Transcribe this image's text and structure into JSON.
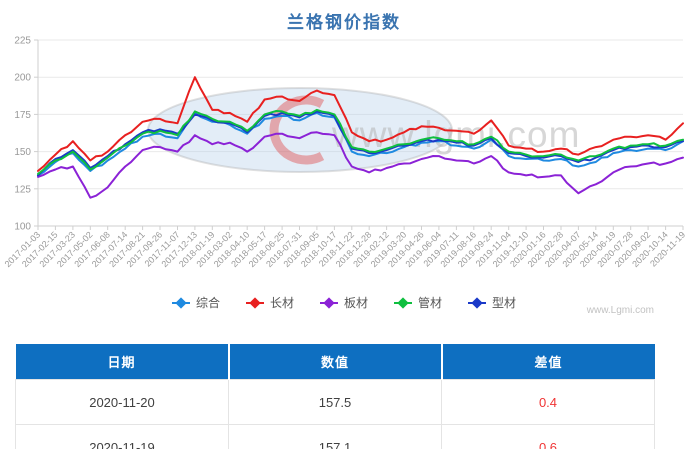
{
  "page": {
    "title": "兰格钢价指数",
    "watermark_small": "www.Lgmi.com",
    "watermark_large": "www.lgmi.com"
  },
  "chart_data": {
    "type": "line",
    "title": "兰格钢价指数",
    "xlabel": "",
    "ylabel": "",
    "ylim": [
      100,
      225
    ],
    "y_ticks": [
      225,
      200,
      175,
      150,
      125,
      100
    ],
    "grid": true,
    "legend_position": "bottom",
    "x_labels": [
      "2017-01-03",
      "2017-02-15",
      "2017-03-23",
      "2017-05-02",
      "2017-06-08",
      "2017-07-14",
      "2017-08-21",
      "2017-09-26",
      "2017-11-07",
      "2017-12-13",
      "2018-01-19",
      "2018-03-02",
      "2018-04-10",
      "2018-05-17",
      "2018-06-25",
      "2018-07-31",
      "2018-09-05",
      "2018-10-17",
      "2018-11-22",
      "2018-12-28",
      "2019-02-12",
      "2019-03-20",
      "2019-04-26",
      "2019-06-04",
      "2019-07-11",
      "2019-08-16",
      "2019-09-24",
      "2019-11-04",
      "2019-12-10",
      "2020-01-16",
      "2020-02-28",
      "2020-04-07",
      "2020-05-14",
      "2020-06-19",
      "2020-07-28",
      "2020-09-02",
      "2020-10-14",
      "2020-11-19"
    ],
    "series": [
      {
        "name": "综合",
        "color": "#1f8ae0",
        "values": [
          134,
          143,
          149,
          137,
          144,
          152,
          160,
          162,
          159,
          176,
          170,
          168,
          162,
          172,
          174,
          171,
          176,
          173,
          150,
          147,
          149,
          153,
          156,
          157,
          154,
          152,
          158,
          147,
          145,
          144,
          145,
          140,
          143,
          149,
          151,
          152,
          151,
          157
        ]
      },
      {
        "name": "长材",
        "color": "#e82020",
        "values": [
          137,
          148,
          157,
          144,
          150,
          161,
          170,
          172,
          169,
          200,
          178,
          176,
          170,
          185,
          187,
          184,
          191,
          188,
          163,
          157,
          158,
          163,
          167,
          166,
          164,
          162,
          171,
          154,
          152,
          150,
          152,
          148,
          153,
          158,
          160,
          161,
          158,
          169
        ]
      },
      {
        "name": "板材",
        "color": "#8b22d6",
        "values": [
          133,
          138,
          140,
          119,
          126,
          140,
          151,
          153,
          150,
          161,
          155,
          156,
          150,
          160,
          162,
          159,
          163,
          161,
          140,
          136,
          139,
          142,
          145,
          147,
          144,
          142,
          147,
          136,
          134,
          133,
          134,
          122,
          128,
          136,
          140,
          142,
          142,
          146
        ]
      },
      {
        "name": "管材",
        "color": "#0fbf3f",
        "values": [
          135,
          144,
          150,
          138,
          146,
          154,
          162,
          164,
          161,
          177,
          172,
          170,
          164,
          175,
          177,
          174,
          178,
          175,
          153,
          150,
          152,
          155,
          158,
          159,
          157,
          155,
          160,
          150,
          148,
          147,
          148,
          144,
          147,
          152,
          154,
          155,
          154,
          158
        ]
      },
      {
        "name": "型材",
        "color": "#1a39c8",
        "values": [
          134,
          145,
          151,
          139,
          147,
          155,
          163,
          165,
          162,
          175,
          171,
          169,
          163,
          174,
          176,
          173,
          177,
          174,
          152,
          149,
          151,
          154,
          157,
          158,
          156,
          154,
          159,
          149,
          147,
          146,
          147,
          143,
          146,
          151,
          153,
          154,
          153,
          157
        ]
      }
    ]
  },
  "table": {
    "headers": [
      "日期",
      "数值",
      "差值"
    ],
    "rows": [
      {
        "date": "2020-11-20",
        "value": "157.5",
        "diff": "0.4"
      },
      {
        "date": "2020-11-19",
        "value": "157.1",
        "diff": "0.6"
      }
    ]
  }
}
